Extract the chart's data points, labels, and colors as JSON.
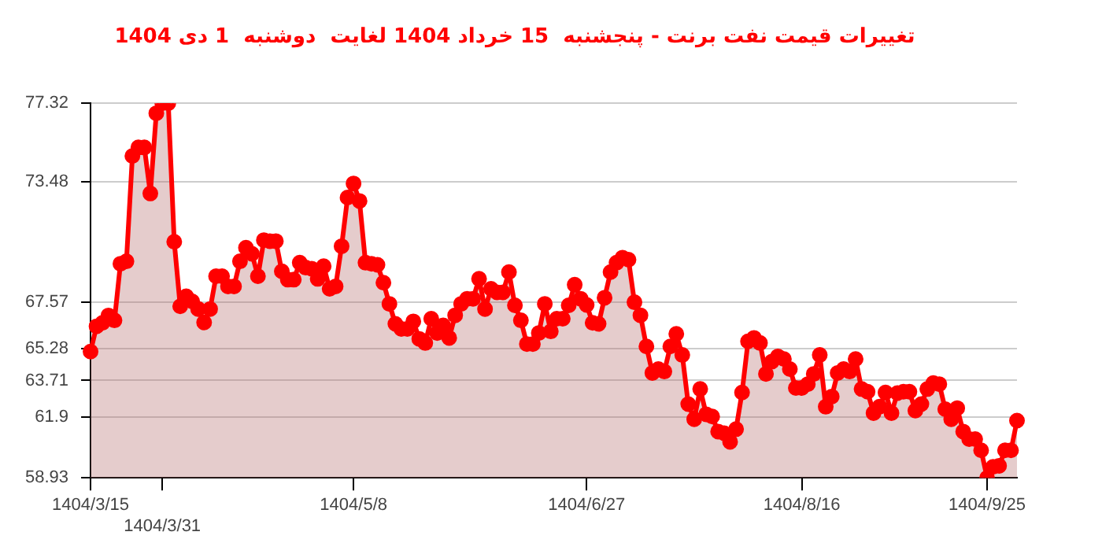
{
  "chart_data": {
    "type": "area",
    "title": "تغییرات قیمت نفت برنت - پنجشنبه  15 خرداد 1404 لغایت  دوشنبه  1 دی 1404",
    "categories": [
      "1404/3/15",
      null,
      null,
      null,
      null,
      null,
      null,
      null,
      null,
      null,
      null,
      null,
      "1404/3/31",
      null,
      null,
      null,
      null,
      null,
      null,
      null,
      null,
      null,
      null,
      null,
      null,
      null,
      null,
      null,
      null,
      null,
      null,
      null,
      null,
      null,
      null,
      null,
      null,
      null,
      null,
      null,
      null,
      null,
      null,
      null,
      "1404/5/8",
      null,
      null,
      null,
      null,
      null,
      null,
      null,
      null,
      null,
      null,
      null,
      null,
      null,
      null,
      null,
      null,
      null,
      null,
      null,
      null,
      null,
      null,
      null,
      null,
      null,
      null,
      null,
      null,
      null,
      null,
      null,
      null,
      null,
      null,
      null,
      null,
      null,
      null,
      "1404/6/27",
      null,
      null,
      null,
      null,
      null,
      null,
      null,
      null,
      null,
      null,
      null,
      null,
      null,
      null,
      null,
      null,
      null,
      null,
      null,
      null,
      null,
      null,
      null,
      null,
      null,
      null,
      null,
      null,
      null,
      null,
      null,
      null,
      null,
      null,
      null,
      "1404/8/16",
      null,
      null,
      null,
      null,
      null,
      null,
      null,
      null,
      null,
      null,
      null,
      null,
      null,
      null,
      null,
      null,
      null,
      null,
      null,
      null,
      null,
      null,
      null,
      null,
      null,
      null,
      null,
      null,
      null,
      null,
      "1404/9/25",
      null,
      null,
      null,
      null,
      null
    ],
    "series": [
      {
        "color": "#ff0000",
        "values": [
          65.13,
          66.37,
          66.54,
          66.9,
          66.66,
          69.44,
          69.56,
          74.73,
          75.15,
          75.15,
          72.89,
          76.83,
          77.32,
          77.32,
          70.52,
          67.35,
          67.84,
          67.59,
          67.22,
          66.56,
          67.22,
          68.83,
          68.83,
          68.33,
          68.33,
          69.56,
          70.23,
          69.93,
          68.83,
          70.6,
          70.55,
          70.55,
          69.07,
          68.66,
          68.66,
          69.49,
          69.25,
          69.2,
          68.7,
          69.32,
          68.21,
          68.33,
          70.3,
          72.69,
          73.38,
          72.52,
          69.49,
          69.44,
          69.39,
          68.51,
          67.47,
          66.49,
          66.24,
          66.24,
          66.61,
          65.75,
          65.55,
          66.74,
          66.04,
          66.41,
          65.8,
          66.91,
          67.47,
          67.72,
          67.72,
          68.7,
          67.22,
          68.21,
          68.04,
          68.04,
          69.03,
          67.4,
          66.66,
          65.5,
          65.5,
          66.04,
          67.47,
          66.12,
          66.74,
          66.74,
          67.4,
          68.41,
          67.72,
          67.42,
          66.54,
          66.49,
          67.77,
          69.03,
          69.49,
          69.74,
          69.64,
          67.55,
          66.91,
          65.38,
          64.08,
          64.27,
          64.15,
          65.38,
          66,
          64.96,
          62.55,
          61.81,
          63.29,
          62.05,
          61.94,
          61.2,
          61.12,
          60.7,
          61.32,
          63.12,
          65.63,
          65.8,
          65.55,
          64.03,
          64.64,
          64.89,
          64.76,
          64.27,
          63.34,
          63.34,
          63.53,
          64.03,
          64.96,
          62.42,
          62.92,
          64.08,
          64.27,
          64.15,
          64.76,
          63.29,
          63.16,
          62.11,
          62.42,
          63.12,
          62.11,
          63.09,
          63.16,
          63.16,
          62.23,
          62.55,
          63.29,
          63.58,
          63.53,
          62.3,
          61.81,
          62.35,
          61.2,
          60.83,
          60.83,
          60.28,
          58.93,
          59.47,
          59.52,
          60.28,
          60.28,
          61.74
        ]
      }
    ],
    "ylim": [
      58.93,
      77.32
    ],
    "yticks": [
      58.93,
      61.9,
      63.71,
      65.28,
      67.57,
      73.48,
      77.32
    ],
    "grid": "y",
    "marker": "circle"
  }
}
